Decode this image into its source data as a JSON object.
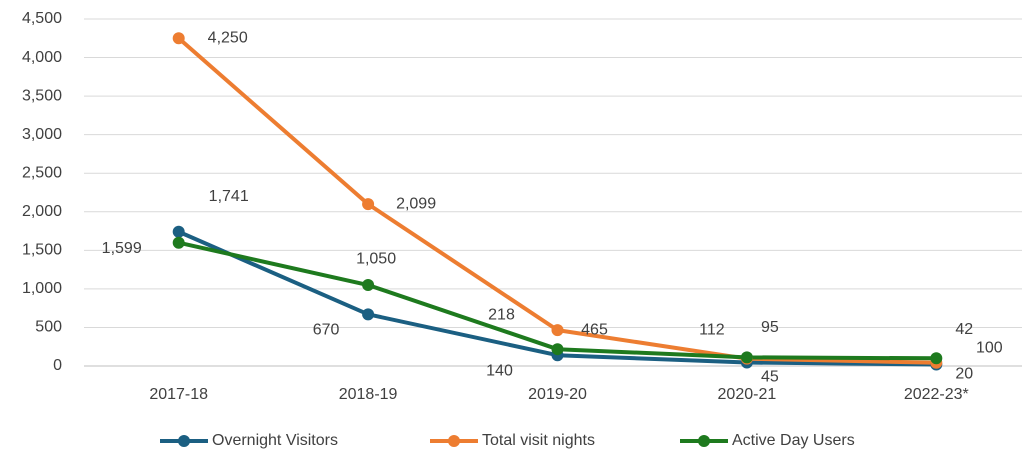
{
  "chart_data": {
    "type": "line",
    "categories": [
      "2017-18",
      "2018-19",
      "2019-20",
      "2020-21",
      "2022-23*"
    ],
    "series": [
      {
        "name": "Overnight Visitors",
        "color": "#1b5f82",
        "values": [
          1741,
          670,
          140,
          45,
          20
        ],
        "value_labels": [
          "1,741",
          "670",
          "140",
          "45",
          "20"
        ]
      },
      {
        "name": "Total visit nights",
        "color": "#ed7d31",
        "values": [
          4250,
          2099,
          465,
          95,
          42
        ],
        "value_labels": [
          "4,250",
          "2,099",
          "465",
          "95",
          "42"
        ]
      },
      {
        "name": "Active Day Users",
        "color": "#1e7a1e",
        "values": [
          1599,
          1050,
          218,
          112,
          100
        ],
        "value_labels": [
          "1,599",
          "1,050",
          "218",
          "112",
          "100"
        ]
      }
    ],
    "ylim": [
      0,
      4500
    ],
    "yticks": [
      0,
      500,
      {
        "value": 1000,
        "label": "1,000"
      },
      {
        "value": 1500,
        "label": "1,500"
      },
      {
        "value": 2000,
        "label": "2,000"
      },
      {
        "value": 2500,
        "label": "2,500"
      },
      {
        "value": 3000,
        "label": "3,000"
      },
      {
        "value": 3500,
        "label": "3,500"
      },
      {
        "value": 4000,
        "label": "4,000"
      },
      {
        "value": 4500,
        "label": "4,500"
      }
    ],
    "grid": true,
    "legend": "bottom"
  }
}
